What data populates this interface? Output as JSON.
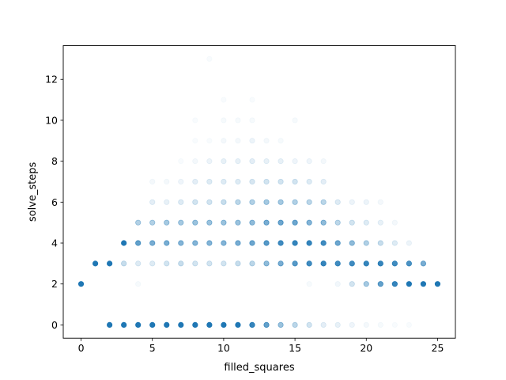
{
  "chart_data": {
    "type": "scatter",
    "title": "",
    "xlabel": "filled_squares",
    "ylabel": "solve_steps",
    "xlim": [
      -1.25,
      26.25
    ],
    "ylim": [
      -0.65,
      13.65
    ],
    "xticks": [
      0,
      5,
      10,
      15,
      20,
      25
    ],
    "yticks": [
      0,
      2,
      4,
      6,
      8,
      10,
      12
    ],
    "grid": false,
    "marker_color": "#1f77b4",
    "points": [
      {
        "x": 0,
        "y": 2,
        "alpha": 1.0
      },
      {
        "x": 1,
        "y": 3,
        "alpha": 1.0
      },
      {
        "x": 2,
        "y": 3,
        "alpha": 1.0
      },
      {
        "x": 2,
        "y": 0,
        "alpha": 1.0
      },
      {
        "x": 3,
        "y": 4,
        "alpha": 1.0
      },
      {
        "x": 3,
        "y": 3,
        "alpha": 0.25
      },
      {
        "x": 3,
        "y": 0,
        "alpha": 1.0
      },
      {
        "x": 4,
        "y": 5,
        "alpha": 0.35
      },
      {
        "x": 4,
        "y": 4,
        "alpha": 0.7
      },
      {
        "x": 4,
        "y": 3,
        "alpha": 0.15
      },
      {
        "x": 4,
        "y": 2,
        "alpha": 0.04
      },
      {
        "x": 4,
        "y": 0,
        "alpha": 1.0
      },
      {
        "x": 5,
        "y": 7,
        "alpha": 0.05
      },
      {
        "x": 5,
        "y": 6,
        "alpha": 0.12
      },
      {
        "x": 5,
        "y": 5,
        "alpha": 0.35
      },
      {
        "x": 5,
        "y": 4,
        "alpha": 0.6
      },
      {
        "x": 5,
        "y": 3,
        "alpha": 0.15
      },
      {
        "x": 5,
        "y": 0,
        "alpha": 1.0
      },
      {
        "x": 6,
        "y": 7,
        "alpha": 0.05
      },
      {
        "x": 6,
        "y": 6,
        "alpha": 0.1
      },
      {
        "x": 6,
        "y": 5,
        "alpha": 0.4
      },
      {
        "x": 6,
        "y": 4,
        "alpha": 0.6
      },
      {
        "x": 6,
        "y": 3,
        "alpha": 0.2
      },
      {
        "x": 6,
        "y": 0,
        "alpha": 1.0
      },
      {
        "x": 7,
        "y": 8,
        "alpha": 0.03
      },
      {
        "x": 7,
        "y": 7,
        "alpha": 0.07
      },
      {
        "x": 7,
        "y": 6,
        "alpha": 0.15
      },
      {
        "x": 7,
        "y": 5,
        "alpha": 0.4
      },
      {
        "x": 7,
        "y": 4,
        "alpha": 0.55
      },
      {
        "x": 7,
        "y": 3,
        "alpha": 0.25
      },
      {
        "x": 7,
        "y": 0,
        "alpha": 1.0
      },
      {
        "x": 8,
        "y": 10,
        "alpha": 0.03
      },
      {
        "x": 8,
        "y": 9,
        "alpha": 0.03
      },
      {
        "x": 8,
        "y": 8,
        "alpha": 0.05
      },
      {
        "x": 8,
        "y": 7,
        "alpha": 0.12
      },
      {
        "x": 8,
        "y": 6,
        "alpha": 0.2
      },
      {
        "x": 8,
        "y": 5,
        "alpha": 0.45
      },
      {
        "x": 8,
        "y": 4,
        "alpha": 0.55
      },
      {
        "x": 8,
        "y": 3,
        "alpha": 0.2
      },
      {
        "x": 8,
        "y": 0,
        "alpha": 1.0
      },
      {
        "x": 9,
        "y": 13,
        "alpha": 0.03
      },
      {
        "x": 9,
        "y": 9,
        "alpha": 0.03
      },
      {
        "x": 9,
        "y": 8,
        "alpha": 0.08
      },
      {
        "x": 9,
        "y": 7,
        "alpha": 0.15
      },
      {
        "x": 9,
        "y": 6,
        "alpha": 0.2
      },
      {
        "x": 9,
        "y": 5,
        "alpha": 0.45
      },
      {
        "x": 9,
        "y": 4,
        "alpha": 0.55
      },
      {
        "x": 9,
        "y": 3,
        "alpha": 0.2
      },
      {
        "x": 9,
        "y": 0,
        "alpha": 1.0
      },
      {
        "x": 10,
        "y": 11,
        "alpha": 0.03
      },
      {
        "x": 10,
        "y": 10,
        "alpha": 0.04
      },
      {
        "x": 10,
        "y": 9,
        "alpha": 0.05
      },
      {
        "x": 10,
        "y": 8,
        "alpha": 0.1
      },
      {
        "x": 10,
        "y": 7,
        "alpha": 0.15
      },
      {
        "x": 10,
        "y": 6,
        "alpha": 0.25
      },
      {
        "x": 10,
        "y": 5,
        "alpha": 0.45
      },
      {
        "x": 10,
        "y": 4,
        "alpha": 0.55
      },
      {
        "x": 10,
        "y": 3,
        "alpha": 0.2
      },
      {
        "x": 10,
        "y": 0,
        "alpha": 1.0
      },
      {
        "x": 11,
        "y": 10,
        "alpha": 0.04
      },
      {
        "x": 11,
        "y": 9,
        "alpha": 0.05
      },
      {
        "x": 11,
        "y": 8,
        "alpha": 0.1
      },
      {
        "x": 11,
        "y": 7,
        "alpha": 0.15
      },
      {
        "x": 11,
        "y": 6,
        "alpha": 0.3
      },
      {
        "x": 11,
        "y": 5,
        "alpha": 0.45
      },
      {
        "x": 11,
        "y": 4,
        "alpha": 0.6
      },
      {
        "x": 11,
        "y": 3,
        "alpha": 0.25
      },
      {
        "x": 11,
        "y": 0,
        "alpha": 1.0
      },
      {
        "x": 12,
        "y": 11,
        "alpha": 0.03
      },
      {
        "x": 12,
        "y": 10,
        "alpha": 0.04
      },
      {
        "x": 12,
        "y": 9,
        "alpha": 0.08
      },
      {
        "x": 12,
        "y": 8,
        "alpha": 0.12
      },
      {
        "x": 12,
        "y": 7,
        "alpha": 0.18
      },
      {
        "x": 12,
        "y": 6,
        "alpha": 0.35
      },
      {
        "x": 12,
        "y": 5,
        "alpha": 0.5
      },
      {
        "x": 12,
        "y": 4,
        "alpha": 0.65
      },
      {
        "x": 12,
        "y": 3,
        "alpha": 0.3
      },
      {
        "x": 12,
        "y": 0,
        "alpha": 0.9
      },
      {
        "x": 13,
        "y": 9,
        "alpha": 0.05
      },
      {
        "x": 13,
        "y": 8,
        "alpha": 0.1
      },
      {
        "x": 13,
        "y": 7,
        "alpha": 0.2
      },
      {
        "x": 13,
        "y": 6,
        "alpha": 0.4
      },
      {
        "x": 13,
        "y": 5,
        "alpha": 0.6
      },
      {
        "x": 13,
        "y": 4,
        "alpha": 0.75
      },
      {
        "x": 13,
        "y": 3,
        "alpha": 0.5
      },
      {
        "x": 13,
        "y": 0,
        "alpha": 0.7
      },
      {
        "x": 14,
        "y": 9,
        "alpha": 0.04
      },
      {
        "x": 14,
        "y": 8,
        "alpha": 0.1
      },
      {
        "x": 14,
        "y": 7,
        "alpha": 0.2
      },
      {
        "x": 14,
        "y": 6,
        "alpha": 0.4
      },
      {
        "x": 14,
        "y": 5,
        "alpha": 0.65
      },
      {
        "x": 14,
        "y": 4,
        "alpha": 0.85
      },
      {
        "x": 14,
        "y": 3,
        "alpha": 0.6
      },
      {
        "x": 14,
        "y": 0,
        "alpha": 0.45
      },
      {
        "x": 15,
        "y": 10,
        "alpha": 0.04
      },
      {
        "x": 15,
        "y": 8,
        "alpha": 0.07
      },
      {
        "x": 15,
        "y": 7,
        "alpha": 0.2
      },
      {
        "x": 15,
        "y": 6,
        "alpha": 0.35
      },
      {
        "x": 15,
        "y": 5,
        "alpha": 0.65
      },
      {
        "x": 15,
        "y": 4,
        "alpha": 0.9
      },
      {
        "x": 15,
        "y": 3,
        "alpha": 0.75
      },
      {
        "x": 15,
        "y": 0,
        "alpha": 0.3
      },
      {
        "x": 16,
        "y": 8,
        "alpha": 0.07
      },
      {
        "x": 16,
        "y": 7,
        "alpha": 0.15
      },
      {
        "x": 16,
        "y": 6,
        "alpha": 0.3
      },
      {
        "x": 16,
        "y": 5,
        "alpha": 0.55
      },
      {
        "x": 16,
        "y": 4,
        "alpha": 0.9
      },
      {
        "x": 16,
        "y": 3,
        "alpha": 0.85
      },
      {
        "x": 16,
        "y": 2,
        "alpha": 0.04
      },
      {
        "x": 16,
        "y": 0,
        "alpha": 0.2
      },
      {
        "x": 17,
        "y": 8,
        "alpha": 0.05
      },
      {
        "x": 17,
        "y": 7,
        "alpha": 0.12
      },
      {
        "x": 17,
        "y": 6,
        "alpha": 0.3
      },
      {
        "x": 17,
        "y": 5,
        "alpha": 0.5
      },
      {
        "x": 17,
        "y": 4,
        "alpha": 0.85
      },
      {
        "x": 17,
        "y": 3,
        "alpha": 0.9
      },
      {
        "x": 17,
        "y": 0,
        "alpha": 0.12
      },
      {
        "x": 18,
        "y": 6,
        "alpha": 0.15
      },
      {
        "x": 18,
        "y": 5,
        "alpha": 0.3
      },
      {
        "x": 18,
        "y": 4,
        "alpha": 0.65
      },
      {
        "x": 18,
        "y": 3,
        "alpha": 0.85
      },
      {
        "x": 18,
        "y": 2,
        "alpha": 0.06
      },
      {
        "x": 18,
        "y": 0,
        "alpha": 0.1
      },
      {
        "x": 19,
        "y": 6,
        "alpha": 0.08
      },
      {
        "x": 19,
        "y": 5,
        "alpha": 0.2
      },
      {
        "x": 19,
        "y": 4,
        "alpha": 0.5
      },
      {
        "x": 19,
        "y": 3,
        "alpha": 0.85
      },
      {
        "x": 19,
        "y": 2,
        "alpha": 0.2
      },
      {
        "x": 19,
        "y": 0,
        "alpha": 0.07
      },
      {
        "x": 20,
        "y": 6,
        "alpha": 0.08
      },
      {
        "x": 20,
        "y": 5,
        "alpha": 0.15
      },
      {
        "x": 20,
        "y": 4,
        "alpha": 0.35
      },
      {
        "x": 20,
        "y": 3,
        "alpha": 0.9
      },
      {
        "x": 20,
        "y": 2,
        "alpha": 0.4
      },
      {
        "x": 20,
        "y": 0,
        "alpha": 0.05
      },
      {
        "x": 21,
        "y": 6,
        "alpha": 0.05
      },
      {
        "x": 21,
        "y": 5,
        "alpha": 0.1
      },
      {
        "x": 21,
        "y": 4,
        "alpha": 0.25
      },
      {
        "x": 21,
        "y": 3,
        "alpha": 0.9
      },
      {
        "x": 21,
        "y": 2,
        "alpha": 0.7
      },
      {
        "x": 21,
        "y": 0,
        "alpha": 0.04
      },
      {
        "x": 22,
        "y": 5,
        "alpha": 0.05
      },
      {
        "x": 22,
        "y": 4,
        "alpha": 0.15
      },
      {
        "x": 22,
        "y": 3,
        "alpha": 0.85
      },
      {
        "x": 22,
        "y": 2,
        "alpha": 0.9
      },
      {
        "x": 22,
        "y": 0,
        "alpha": 0.03
      },
      {
        "x": 23,
        "y": 4,
        "alpha": 0.08
      },
      {
        "x": 23,
        "y": 3,
        "alpha": 0.8
      },
      {
        "x": 23,
        "y": 2,
        "alpha": 1.0
      },
      {
        "x": 23,
        "y": 0,
        "alpha": 0.03
      },
      {
        "x": 24,
        "y": 3,
        "alpha": 0.6
      },
      {
        "x": 24,
        "y": 2,
        "alpha": 1.0
      },
      {
        "x": 25,
        "y": 2,
        "alpha": 1.0
      }
    ]
  }
}
